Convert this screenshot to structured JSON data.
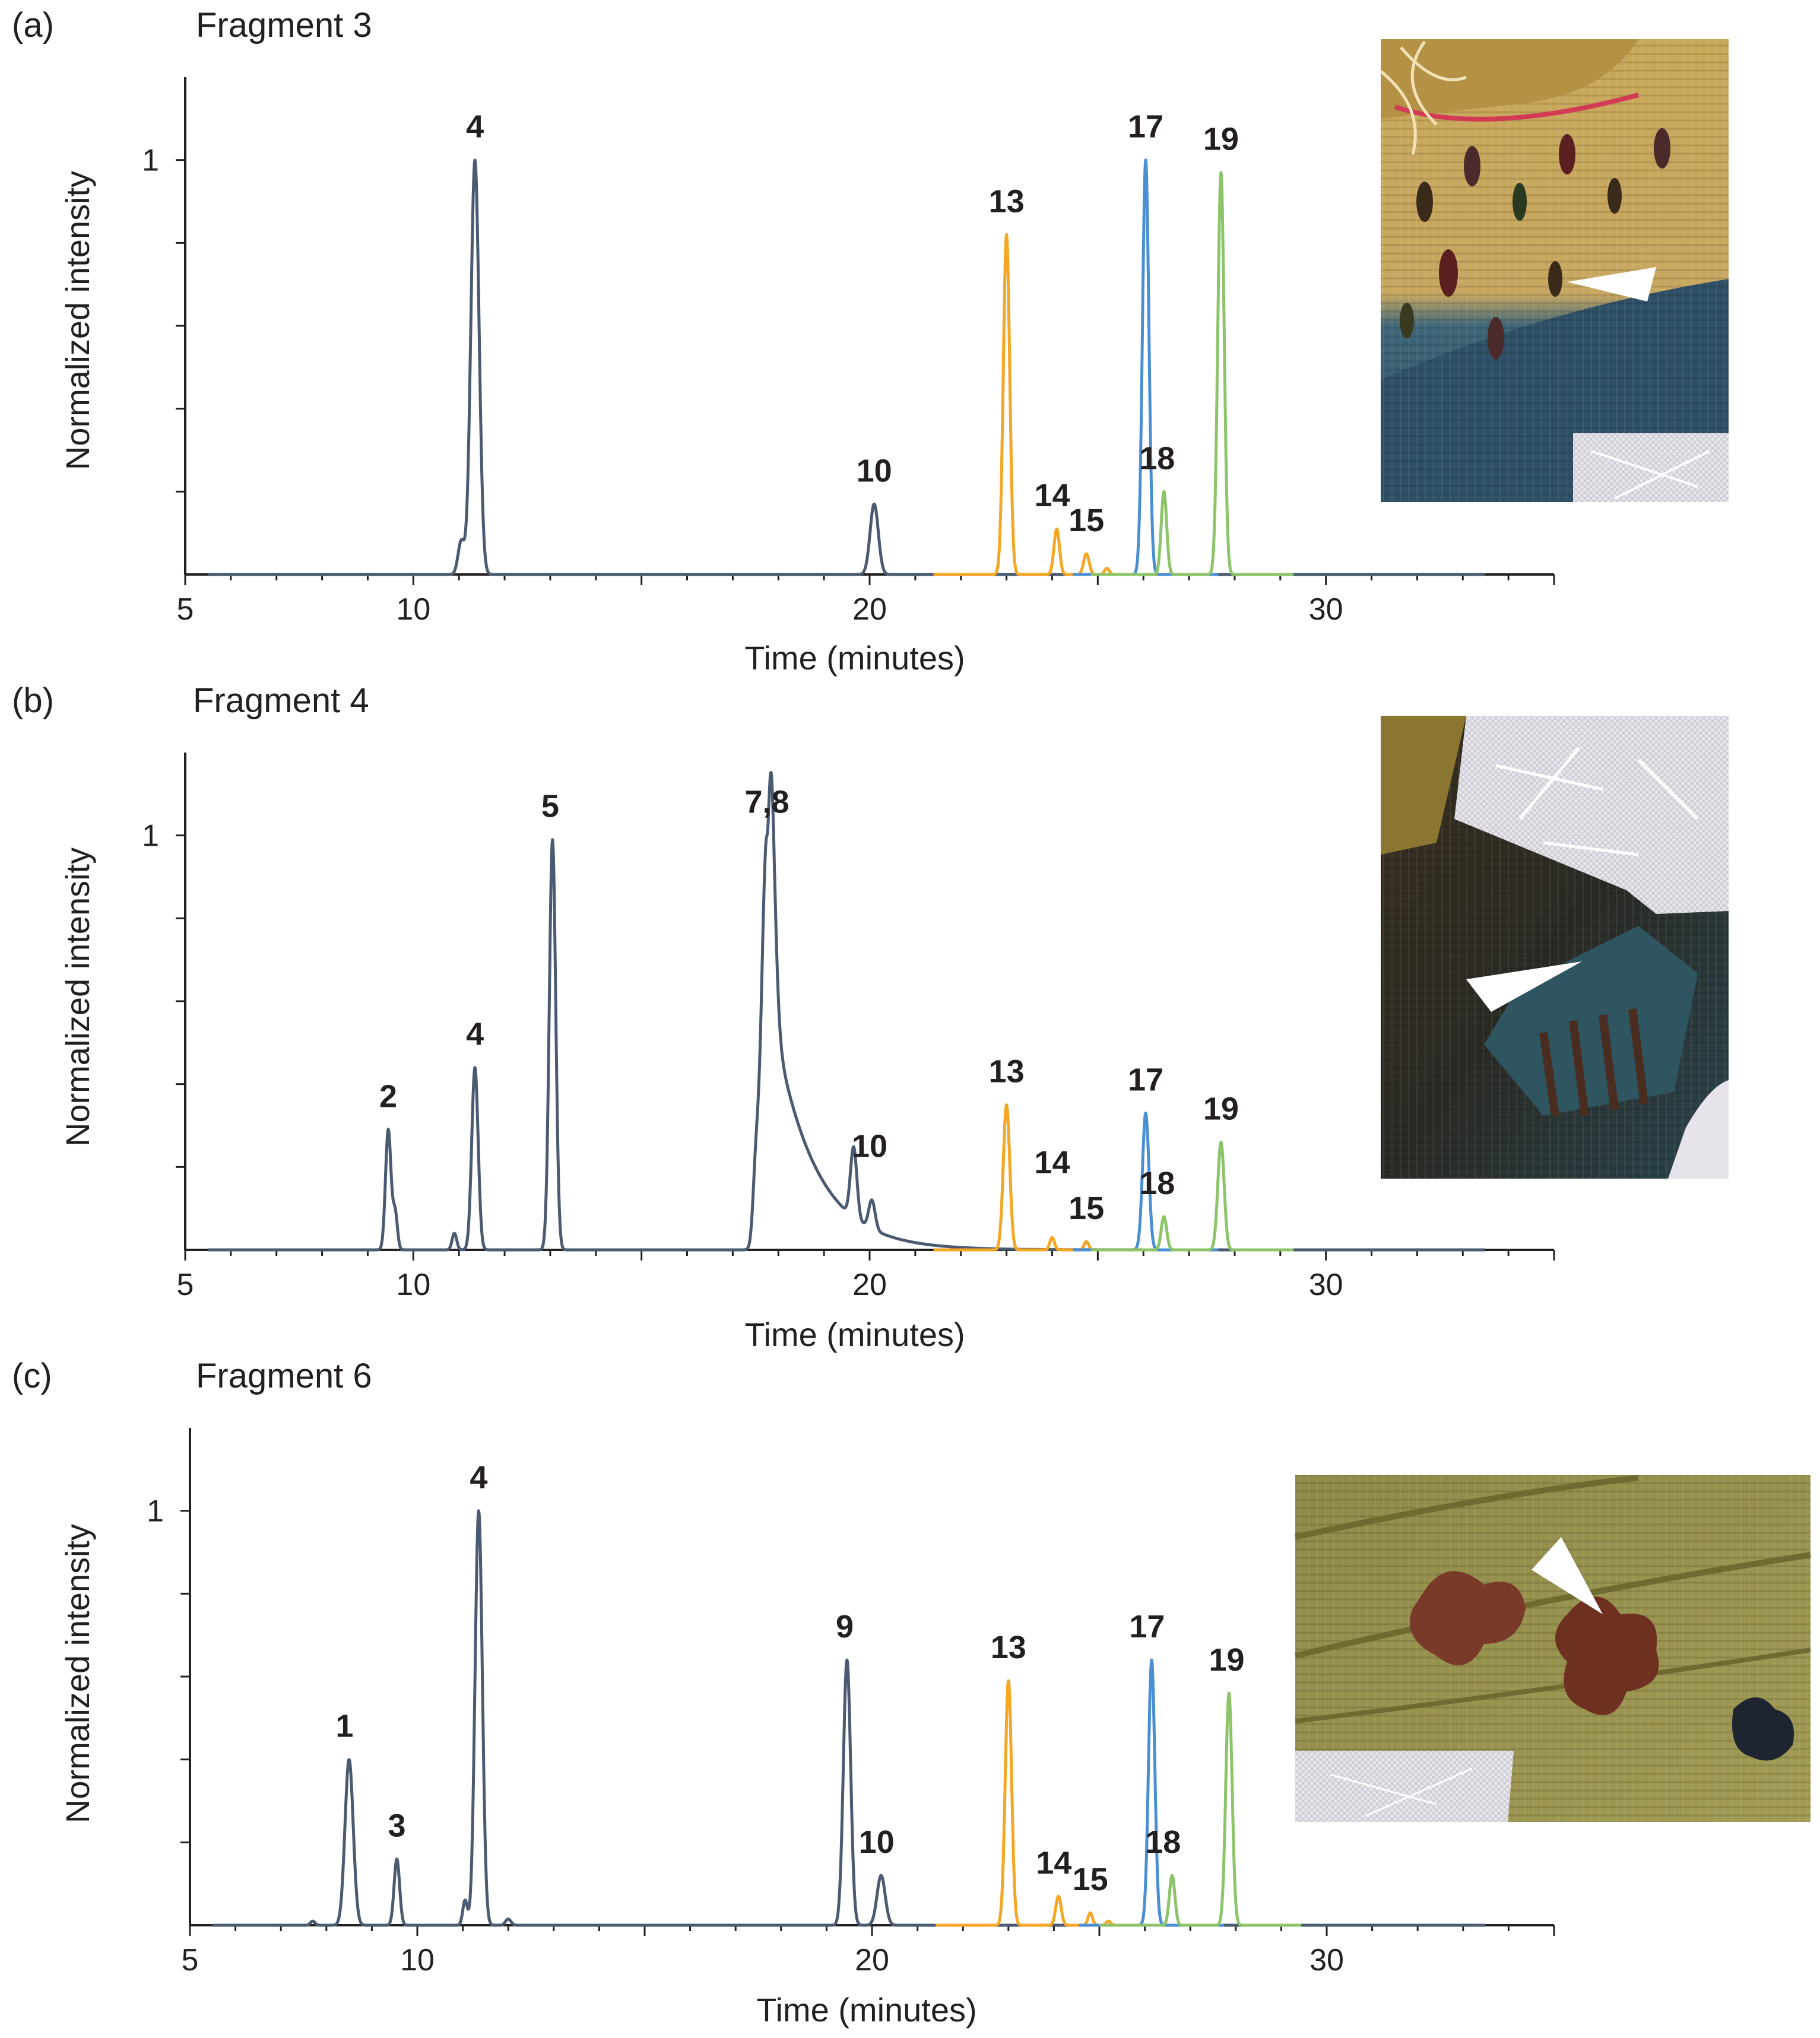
{
  "colors": {
    "axis": "#231f20",
    "gray": "#4a5a70",
    "orange": "#f5a623",
    "blue": "#4a8fd4",
    "green": "#8cc46a"
  },
  "chart_data": [
    {
      "type": "line",
      "panel_label": "(a)",
      "title": "Fragment 3",
      "xlabel": "Time (minutes)",
      "ylabel": "Normalized intensity",
      "xlim": [
        5,
        35
      ],
      "ylim": [
        0,
        1.2
      ],
      "xticks": [
        5,
        10,
        20,
        30
      ],
      "yticks": [
        1
      ],
      "series": [
        {
          "color": "gray",
          "peaks": [
            [
              11.05,
              0.08,
              0.07
            ],
            [
              11.35,
              1.0,
              0.09
            ],
            [
              20.1,
              0.17,
              0.09
            ]
          ]
        },
        {
          "color": "orange",
          "peaks": [
            [
              23.0,
              0.82,
              0.07
            ],
            [
              24.1,
              0.11,
              0.06
            ],
            [
              24.75,
              0.05,
              0.06
            ],
            [
              25.2,
              0.015,
              0.05
            ]
          ]
        },
        {
          "color": "blue",
          "peaks": [
            [
              26.05,
              1.0,
              0.07
            ]
          ]
        },
        {
          "color": "green",
          "peaks": [
            [
              26.45,
              0.2,
              0.06
            ],
            [
              27.7,
              0.97,
              0.07
            ]
          ]
        }
      ],
      "peak_labels": [
        {
          "text": "4",
          "x": 11.35,
          "y": 1.0
        },
        {
          "text": "10",
          "x": 20.1,
          "y": 0.17
        },
        {
          "text": "13",
          "x": 23.0,
          "y": 0.82
        },
        {
          "text": "14",
          "x": 24.0,
          "y": 0.11
        },
        {
          "text": "15",
          "x": 24.75,
          "y": 0.05
        },
        {
          "text": "17",
          "x": 26.05,
          "y": 1.0
        },
        {
          "text": "18",
          "x": 26.3,
          "y": 0.2
        },
        {
          "text": "19",
          "x": 27.7,
          "y": 0.97
        }
      ]
    },
    {
      "type": "line",
      "panel_label": "(b)",
      "title": "Fragment 4",
      "xlabel": "Time (minutes)",
      "ylabel": "Normalized intensity",
      "xlim": [
        5,
        35
      ],
      "ylim": [
        0,
        1.2
      ],
      "xticks": [
        5,
        10,
        20,
        30
      ],
      "yticks": [
        1
      ],
      "series": [
        {
          "color": "gray",
          "peaks": [
            [
              9.45,
              0.29,
              0.06
            ],
            [
              9.6,
              0.09,
              0.05
            ],
            [
              10.9,
              0.04,
              0.05
            ],
            [
              11.35,
              0.44,
              0.07
            ],
            [
              13.05,
              0.99,
              0.07
            ],
            [
              17.5,
              0.14,
              0.06
            ],
            [
              17.75,
              1.0,
              0.12,
              0.9
            ],
            [
              19.65,
              0.17,
              0.07
            ],
            [
              20.05,
              0.07,
              0.07
            ]
          ]
        },
        {
          "color": "orange",
          "peaks": [
            [
              23.0,
              0.35,
              0.07
            ],
            [
              24.0,
              0.03,
              0.05
            ],
            [
              24.75,
              0.02,
              0.05
            ]
          ]
        },
        {
          "color": "blue",
          "peaks": [
            [
              26.05,
              0.33,
              0.07
            ]
          ]
        },
        {
          "color": "green",
          "peaks": [
            [
              26.45,
              0.08,
              0.06
            ],
            [
              27.7,
              0.26,
              0.07
            ]
          ]
        }
      ],
      "peak_labels": [
        {
          "text": "2",
          "x": 9.45,
          "y": 0.29
        },
        {
          "text": "4",
          "x": 11.35,
          "y": 0.44
        },
        {
          "text": "5",
          "x": 13.0,
          "y": 0.99
        },
        {
          "text": "7,8",
          "x": 17.75,
          "y": 1.0
        },
        {
          "text": "10",
          "x": 20.0,
          "y": 0.17
        },
        {
          "text": "13",
          "x": 23.0,
          "y": 0.35
        },
        {
          "text": "14",
          "x": 24.0,
          "y": 0.13
        },
        {
          "text": "15",
          "x": 24.75,
          "y": 0.02
        },
        {
          "text": "17",
          "x": 26.05,
          "y": 0.33
        },
        {
          "text": "18",
          "x": 26.3,
          "y": 0.08
        },
        {
          "text": "19",
          "x": 27.7,
          "y": 0.26
        }
      ]
    },
    {
      "type": "line",
      "panel_label": "(c)",
      "title": "Fragment 6",
      "xlabel": "Time (minutes)",
      "ylabel": "Normalized intensity",
      "xlim": [
        5,
        35
      ],
      "ylim": [
        0,
        1.2
      ],
      "xticks": [
        5,
        10,
        20,
        30
      ],
      "yticks": [
        1
      ],
      "series": [
        {
          "color": "gray",
          "peaks": [
            [
              7.7,
              0.01,
              0.05
            ],
            [
              8.5,
              0.4,
              0.09
            ],
            [
              9.55,
              0.16,
              0.06
            ],
            [
              11.05,
              0.06,
              0.05
            ],
            [
              11.35,
              1.0,
              0.08
            ],
            [
              12.0,
              0.015,
              0.06
            ],
            [
              19.45,
              0.64,
              0.08
            ],
            [
              20.2,
              0.12,
              0.09
            ]
          ]
        },
        {
          "color": "orange",
          "peaks": [
            [
              23.0,
              0.59,
              0.07
            ],
            [
              24.1,
              0.07,
              0.06
            ],
            [
              24.8,
              0.03,
              0.05
            ],
            [
              25.2,
              0.01,
              0.05
            ]
          ]
        },
        {
          "color": "blue",
          "peaks": [
            [
              26.15,
              0.64,
              0.07
            ]
          ]
        },
        {
          "color": "green",
          "peaks": [
            [
              26.6,
              0.12,
              0.06
            ],
            [
              27.85,
              0.56,
              0.07
            ]
          ]
        }
      ],
      "peak_labels": [
        {
          "text": "1",
          "x": 8.4,
          "y": 0.4
        },
        {
          "text": "3",
          "x": 9.55,
          "y": 0.16
        },
        {
          "text": "4",
          "x": 11.35,
          "y": 1.0
        },
        {
          "text": "9",
          "x": 19.4,
          "y": 0.64
        },
        {
          "text": "10",
          "x": 20.1,
          "y": 0.12
        },
        {
          "text": "13",
          "x": 23.0,
          "y": 0.59
        },
        {
          "text": "14",
          "x": 24.0,
          "y": 0.07
        },
        {
          "text": "15",
          "x": 24.8,
          "y": 0.03
        },
        {
          "text": "17",
          "x": 26.05,
          "y": 0.64
        },
        {
          "text": "18",
          "x": 26.4,
          "y": 0.12
        },
        {
          "text": "19",
          "x": 27.8,
          "y": 0.56
        }
      ]
    }
  ]
}
